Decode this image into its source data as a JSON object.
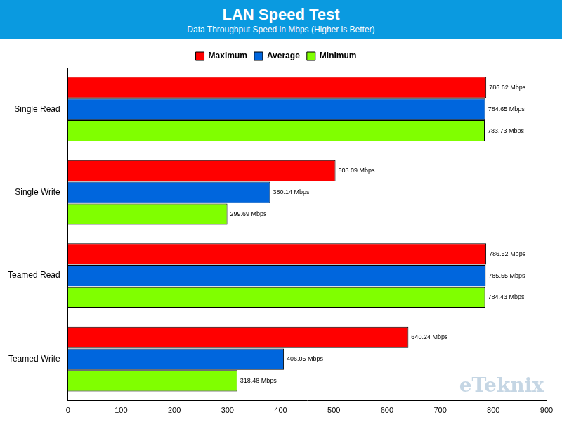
{
  "chart_data": {
    "type": "bar",
    "orientation": "horizontal",
    "title": "LAN Speed Test",
    "subtitle": "Data Throughput Speed in Mbps (Higher is Better)",
    "annotations": [
      "eTeknix"
    ],
    "categories": [
      "Single Read",
      "Single Write",
      "Teamed Read",
      "Teamed Write"
    ],
    "series": [
      {
        "name": "Maximum",
        "color": "#ff0000",
        "values": [
          786.62,
          503.09,
          786.52,
          640.24
        ],
        "value_labels": [
          "786.62 Mbps",
          "503.09 Mbps",
          "786.52 Mbps",
          "640.24 Mbps"
        ]
      },
      {
        "name": "Average",
        "color": "#0066dd",
        "values": [
          784.65,
          380.14,
          785.55,
          406.05
        ],
        "value_labels": [
          "784.65 Mbps",
          "380.14 Mbps",
          "785.55 Mbps",
          "406.05 Mbps"
        ]
      },
      {
        "name": "Minimum",
        "color": "#80ff00",
        "values": [
          783.73,
          299.69,
          784.43,
          318.48
        ],
        "value_labels": [
          "783.73 Mbps",
          "299.69 Mbps",
          "784.43 Mbps",
          "318.48 Mbps"
        ]
      }
    ],
    "xlim": [
      0,
      900
    ],
    "xticks": [
      0,
      100,
      200,
      300,
      400,
      500,
      600,
      700,
      800,
      900
    ],
    "grid": false,
    "legend": "top",
    "data_labels": true
  }
}
